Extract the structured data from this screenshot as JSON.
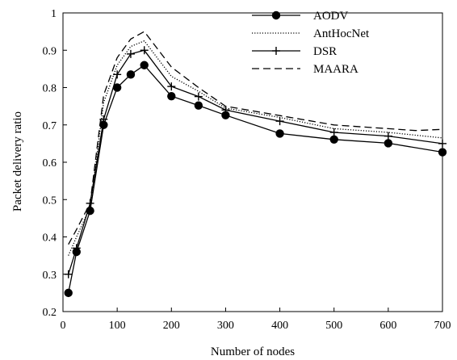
{
  "chart_data": {
    "type": "line",
    "title": "",
    "xlabel": "Number of nodes",
    "ylabel": "Packet delivery ratio",
    "xlim": [
      0,
      700
    ],
    "ylim": [
      0.2,
      1.0
    ],
    "xticks": [
      0,
      100,
      200,
      300,
      400,
      500,
      600,
      700
    ],
    "yticks": [
      0.2,
      0.3,
      0.4,
      0.5,
      0.6,
      0.7,
      0.8,
      0.9,
      1.0
    ],
    "xtick_labels": [
      "0",
      "100",
      "200",
      "300",
      "400",
      "500",
      "600",
      "700"
    ],
    "ytick_labels": [
      "0.2",
      "0.3",
      "0.4",
      "0.5",
      "0.6",
      "0.7",
      "0.8",
      "0.9",
      "1"
    ],
    "grid": false,
    "legend_position": "top-right",
    "series": [
      {
        "name": "AODV",
        "style": "solid",
        "marker": "filled-circle",
        "color": "#000000",
        "x": [
          10,
          25,
          50,
          75,
          100,
          125,
          150,
          200,
          250,
          300,
          400,
          500,
          600,
          700
        ],
        "y": [
          0.25,
          0.36,
          0.47,
          0.7,
          0.8,
          0.835,
          0.86,
          0.777,
          0.752,
          0.726,
          0.677,
          0.661,
          0.651,
          0.627
        ]
      },
      {
        "name": "AntHocNet",
        "style": "dotted",
        "marker": "none",
        "color": "#000000",
        "x": [
          10,
          25,
          50,
          75,
          100,
          125,
          150,
          200,
          250,
          300,
          400,
          500,
          600,
          700
        ],
        "y": [
          0.35,
          0.4,
          0.48,
          0.76,
          0.86,
          0.91,
          0.925,
          0.83,
          0.79,
          0.745,
          0.72,
          0.69,
          0.68,
          0.665
        ]
      },
      {
        "name": "DSR",
        "style": "solid",
        "marker": "plus",
        "color": "#000000",
        "x": [
          10,
          25,
          50,
          75,
          100,
          125,
          150,
          200,
          250,
          300,
          400,
          500,
          600,
          700
        ],
        "y": [
          0.3,
          0.37,
          0.49,
          0.715,
          0.835,
          0.89,
          0.9,
          0.803,
          0.776,
          0.74,
          0.71,
          0.68,
          0.67,
          0.65
        ]
      },
      {
        "name": "MAARA",
        "style": "dashed",
        "marker": "none",
        "color": "#000000",
        "x": [
          10,
          25,
          50,
          75,
          100,
          125,
          150,
          200,
          250,
          300,
          400,
          500,
          600,
          650,
          700
        ],
        "y": [
          0.38,
          0.42,
          0.49,
          0.78,
          0.88,
          0.93,
          0.95,
          0.855,
          0.8,
          0.75,
          0.725,
          0.7,
          0.69,
          0.685,
          0.688
        ]
      }
    ]
  }
}
